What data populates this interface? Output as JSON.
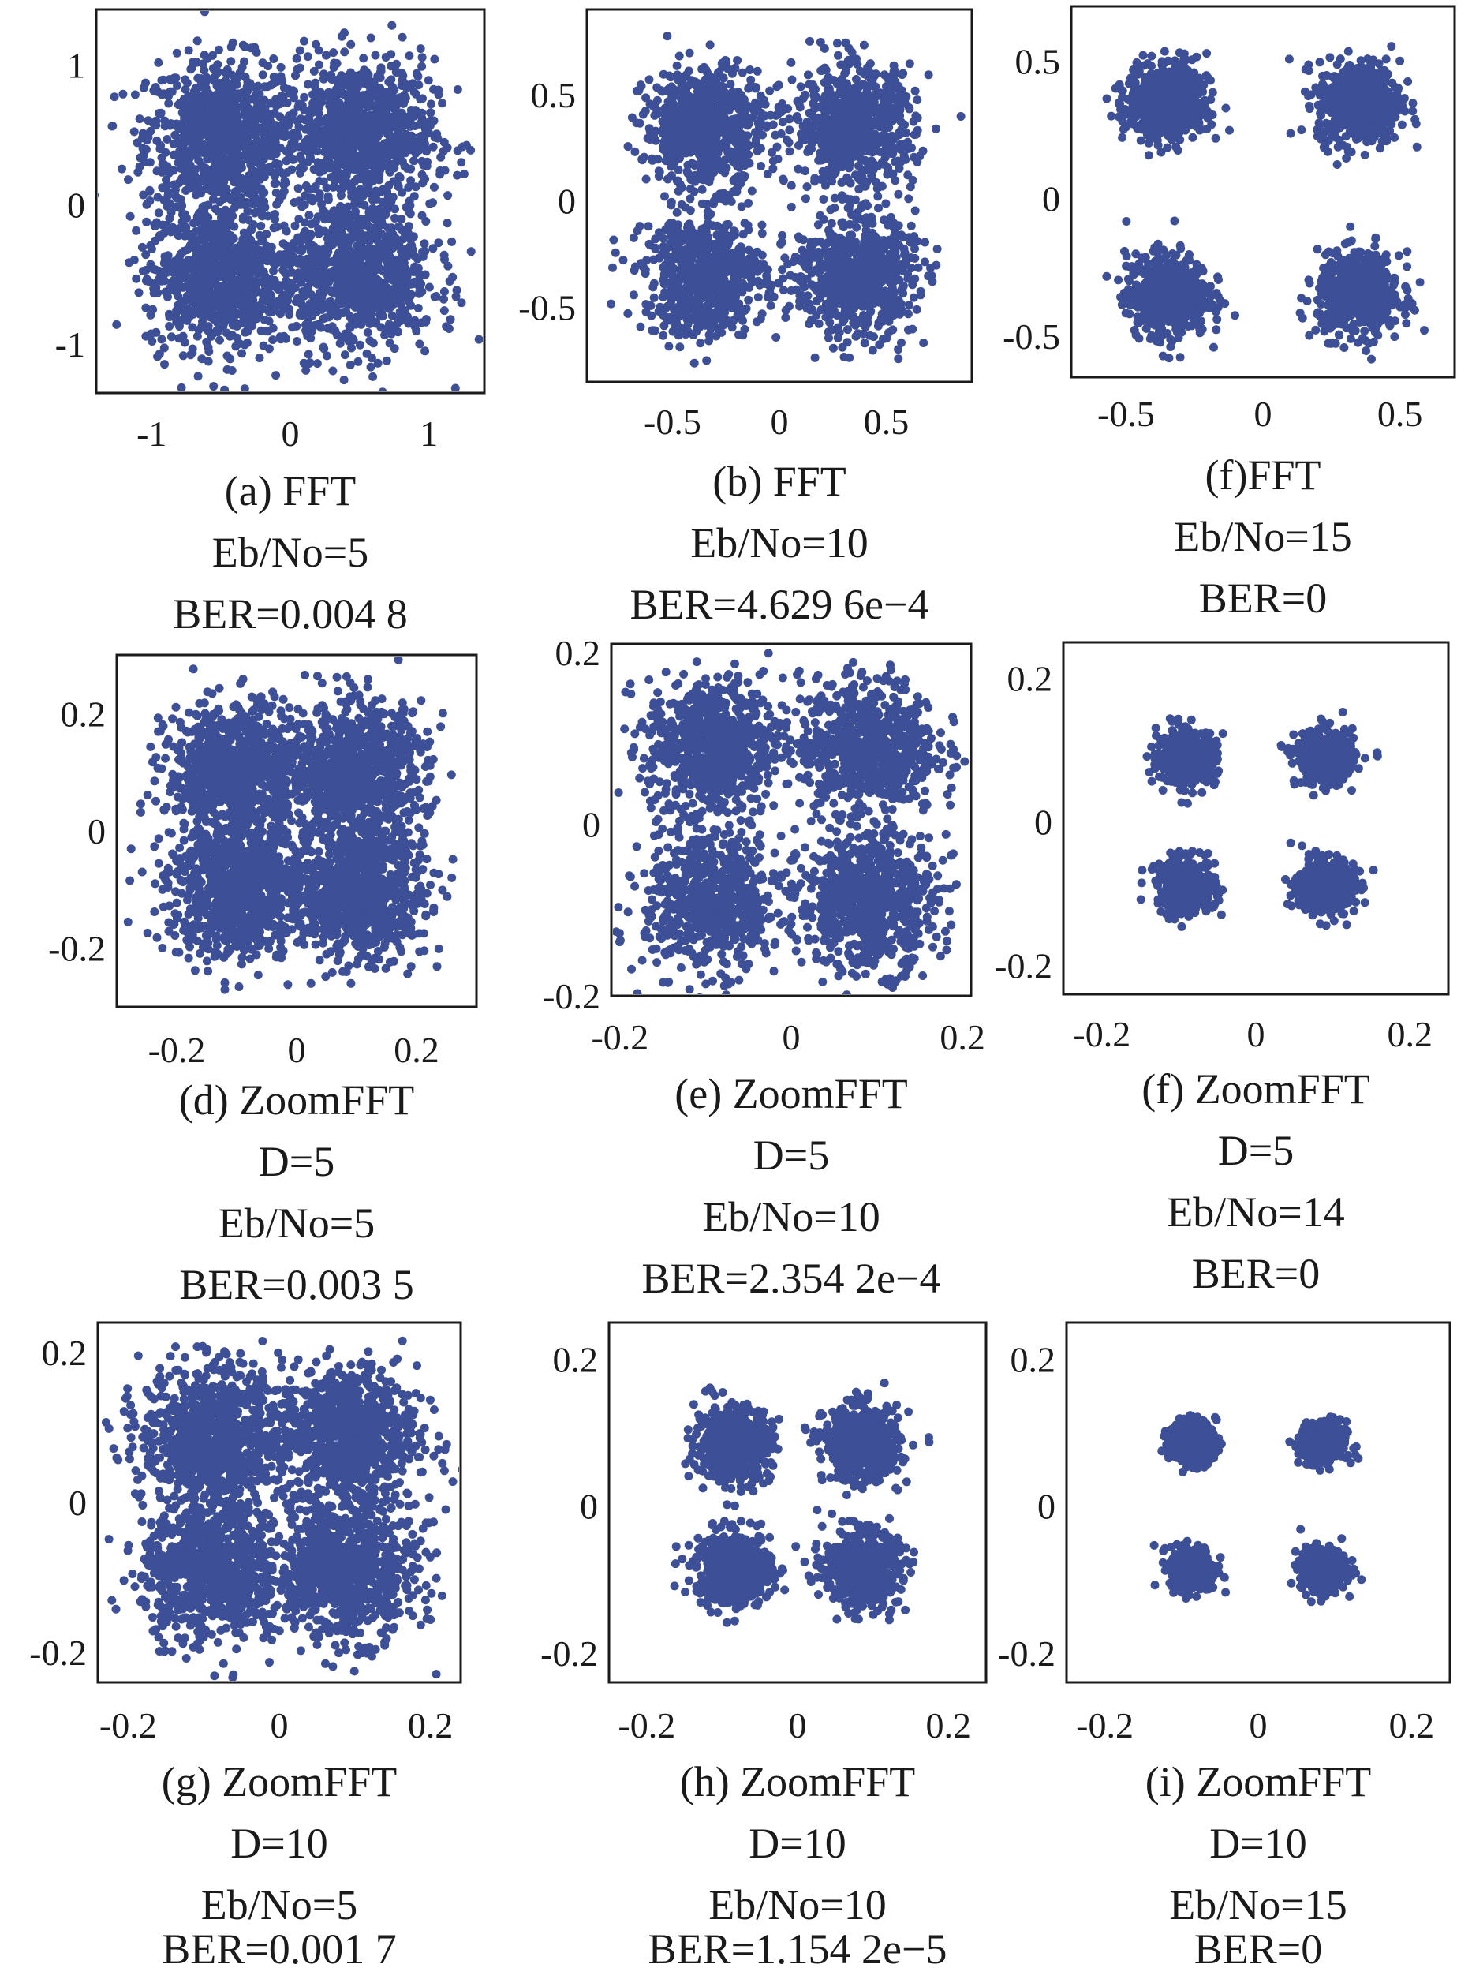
{
  "colors": {
    "marker": "#3d4f96",
    "axis": "#1a1a1a",
    "background": "#ffffff"
  },
  "chart_data": [
    {
      "id": "a",
      "type": "scatter",
      "caption": [
        "(a) FFT",
        "Eb/No=5",
        "BER=0.004 8"
      ],
      "xlim": [
        -1.4,
        1.4
      ],
      "ylim": [
        -1.35,
        1.4
      ],
      "xticks": [
        {
          "v": -1,
          "label": "-1"
        },
        {
          "v": 0,
          "label": "0"
        },
        {
          "v": 1,
          "label": "1"
        }
      ],
      "yticks": [
        {
          "v": 1,
          "label": "1"
        },
        {
          "v": 0,
          "label": "0"
        },
        {
          "v": -1,
          "label": "-1"
        }
      ],
      "cluster_centers": [
        [
          -0.5,
          0.5
        ],
        [
          0.5,
          0.5
        ],
        [
          -0.5,
          -0.5
        ],
        [
          0.5,
          -0.5
        ]
      ],
      "cluster_spread": 0.27,
      "points_per_cluster": 850
    },
    {
      "id": "b",
      "type": "scatter",
      "caption": [
        "(b) FFT",
        "Eb/No=10",
        "BER=4.629 6e−4"
      ],
      "xlim": [
        -0.9,
        0.9
      ],
      "ylim": [
        -0.85,
        0.9
      ],
      "xticks": [
        {
          "v": -0.5,
          "label": "-0.5"
        },
        {
          "v": 0,
          "label": "0"
        },
        {
          "v": 0.5,
          "label": "0.5"
        }
      ],
      "yticks": [
        {
          "v": 0.5,
          "label": "0.5"
        },
        {
          "v": 0,
          "label": "0"
        },
        {
          "v": -0.5,
          "label": "-0.5"
        }
      ],
      "cluster_centers": [
        [
          -0.35,
          0.35
        ],
        [
          0.35,
          0.35
        ],
        [
          -0.35,
          -0.35
        ],
        [
          0.35,
          -0.35
        ]
      ],
      "cluster_spread": 0.14,
      "points_per_cluster": 700
    },
    {
      "id": "c",
      "type": "scatter",
      "caption": [
        "(f)FFT",
        "Eb/No=15",
        "BER=0"
      ],
      "xlim": [
        -0.7,
        0.7
      ],
      "ylim": [
        -0.65,
        0.7
      ],
      "xticks": [
        {
          "v": -0.5,
          "label": "-0.5"
        },
        {
          "v": 0,
          "label": "0"
        },
        {
          "v": 0.5,
          "label": "0.5"
        }
      ],
      "yticks": [
        {
          "v": 0.5,
          "label": "0.5"
        },
        {
          "v": 0,
          "label": "0"
        },
        {
          "v": -0.5,
          "label": "-0.5"
        }
      ],
      "cluster_centers": [
        [
          -0.35,
          0.35
        ],
        [
          0.35,
          0.35
        ],
        [
          -0.35,
          -0.35
        ],
        [
          0.35,
          -0.35
        ]
      ],
      "cluster_spread": 0.075,
      "points_per_cluster": 550
    },
    {
      "id": "d",
      "type": "scatter",
      "caption": [
        "(d) ZoomFFT",
        "D=5",
        "Eb/No=5",
        "BER=0.003 5"
      ],
      "xlim": [
        -0.3,
        0.3
      ],
      "ylim": [
        -0.3,
        0.3
      ],
      "xticks": [
        {
          "v": -0.2,
          "label": "-0.2"
        },
        {
          "v": 0,
          "label": "0"
        },
        {
          "v": 0.2,
          "label": "0.2"
        }
      ],
      "yticks": [
        {
          "v": 0.2,
          "label": "0.2"
        },
        {
          "v": 0,
          "label": "0"
        },
        {
          "v": -0.2,
          "label": "-0.2"
        }
      ],
      "cluster_centers": [
        [
          -0.1,
          0.1
        ],
        [
          0.1,
          0.1
        ],
        [
          -0.1,
          -0.1
        ],
        [
          0.1,
          -0.1
        ]
      ],
      "cluster_spread": 0.058,
      "points_per_cluster": 850
    },
    {
      "id": "e",
      "type": "scatter",
      "caption": [
        "(e) ZoomFFT",
        "D=5",
        "Eb/No=10",
        "BER=2.354 2e−4"
      ],
      "xlim": [
        -0.21,
        0.21
      ],
      "ylim": [
        -0.2,
        0.21
      ],
      "xticks": [
        {
          "v": -0.2,
          "label": "-0.2"
        },
        {
          "v": 0,
          "label": "0"
        },
        {
          "v": 0.2,
          "label": "0.2"
        }
      ],
      "yticks": [
        {
          "v": 0.2,
          "label": "0.2"
        },
        {
          "v": 0,
          "label": "0"
        },
        {
          "v": -0.2,
          "label": "-0.2"
        }
      ],
      "cluster_centers": [
        [
          -0.09,
          0.09
        ],
        [
          0.09,
          0.09
        ],
        [
          -0.09,
          -0.09
        ],
        [
          0.09,
          -0.09
        ]
      ],
      "cluster_spread": 0.04,
      "points_per_cluster": 700
    },
    {
      "id": "f",
      "type": "scatter",
      "caption": [
        "(f) ZoomFFT",
        "D=5",
        "Eb/No=14",
        "BER=0"
      ],
      "xlim": [
        -0.25,
        0.25
      ],
      "ylim": [
        -0.24,
        0.25
      ],
      "xticks": [
        {
          "v": -0.2,
          "label": "-0.2"
        },
        {
          "v": 0,
          "label": "0"
        },
        {
          "v": 0.2,
          "label": "0.2"
        }
      ],
      "yticks": [
        {
          "v": 0.2,
          "label": "0.2"
        },
        {
          "v": 0,
          "label": "0"
        },
        {
          "v": -0.2,
          "label": "-0.2"
        }
      ],
      "cluster_centers": [
        [
          -0.09,
          0.09
        ],
        [
          0.09,
          0.09
        ],
        [
          -0.09,
          -0.09
        ],
        [
          0.09,
          -0.09
        ]
      ],
      "cluster_spread": 0.019,
      "points_per_cluster": 400
    },
    {
      "id": "g",
      "type": "scatter",
      "caption": [
        "(g) ZoomFFT",
        "D=10",
        "Eb/No=5",
        "BER=0.001 7"
      ],
      "xlim": [
        -0.24,
        0.24
      ],
      "ylim": [
        -0.24,
        0.24
      ],
      "xticks": [
        {
          "v": -0.2,
          "label": "-0.2"
        },
        {
          "v": 0,
          "label": "0"
        },
        {
          "v": 0.2,
          "label": "0.2"
        }
      ],
      "yticks": [
        {
          "v": 0.2,
          "label": "0.2"
        },
        {
          "v": 0,
          "label": "0"
        },
        {
          "v": -0.2,
          "label": "-0.2"
        }
      ],
      "cluster_centers": [
        [
          -0.09,
          0.09
        ],
        [
          0.09,
          0.09
        ],
        [
          -0.09,
          -0.09
        ],
        [
          0.09,
          -0.09
        ]
      ],
      "cluster_spread": 0.046,
      "points_per_cluster": 850
    },
    {
      "id": "h",
      "type": "scatter",
      "caption": [
        "(h) ZoomFFT",
        "D=10",
        "Eb/No=10",
        "BER=1.154 2e−5"
      ],
      "xlim": [
        -0.25,
        0.25
      ],
      "ylim": [
        -0.24,
        0.25
      ],
      "xticks": [
        {
          "v": -0.2,
          "label": "-0.2"
        },
        {
          "v": 0,
          "label": "0"
        },
        {
          "v": 0.2,
          "label": "0.2"
        }
      ],
      "yticks": [
        {
          "v": 0.2,
          "label": "0.2"
        },
        {
          "v": 0,
          "label": "0"
        },
        {
          "v": -0.2,
          "label": "-0.2"
        }
      ],
      "cluster_centers": [
        [
          -0.085,
          0.085
        ],
        [
          0.085,
          0.085
        ],
        [
          -0.085,
          -0.085
        ],
        [
          0.085,
          -0.085
        ]
      ],
      "cluster_spread": 0.025,
      "points_per_cluster": 550
    },
    {
      "id": "i",
      "type": "scatter",
      "caption": [
        "(i) ZoomFFT",
        "D=10",
        "Eb/No=15",
        "BER=0"
      ],
      "xlim": [
        -0.25,
        0.25
      ],
      "ylim": [
        -0.24,
        0.25
      ],
      "xticks": [
        {
          "v": -0.2,
          "label": "-0.2"
        },
        {
          "v": 0,
          "label": "0"
        },
        {
          "v": 0.2,
          "label": "0.2"
        }
      ],
      "yticks": [
        {
          "v": 0.2,
          "label": "0.2"
        },
        {
          "v": 0,
          "label": "0"
        },
        {
          "v": -0.2,
          "label": "-0.2"
        }
      ],
      "cluster_centers": [
        [
          -0.085,
          0.085
        ],
        [
          0.085,
          0.085
        ],
        [
          -0.085,
          -0.085
        ],
        [
          0.085,
          -0.085
        ]
      ],
      "cluster_spread": 0.015,
      "points_per_cluster": 350
    }
  ]
}
